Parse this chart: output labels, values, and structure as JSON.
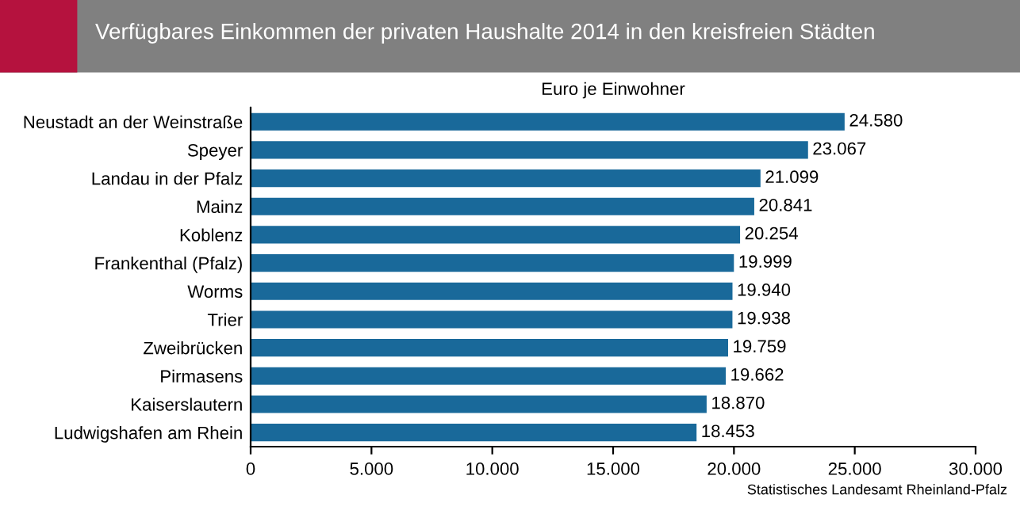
{
  "chart_data": {
    "type": "bar",
    "orientation": "horizontal",
    "title": "Verfügbares Einkommen der privaten Haushalte 2014 in den kreisfreien Städten",
    "subtitle": "Euro je Einwohner",
    "categories": [
      "Neustadt an der Weinstraße",
      "Speyer",
      "Landau in der Pfalz",
      "Mainz",
      "Koblenz",
      "Frankenthal (Pfalz)",
      "Worms",
      "Trier",
      "Zweibrücken",
      "Pirmasens",
      "Kaiserslautern",
      "Ludwigshafen am Rhein"
    ],
    "values": [
      24580,
      23067,
      21099,
      20841,
      20254,
      19999,
      19940,
      19938,
      19759,
      19662,
      18870,
      18453
    ],
    "value_labels": [
      "24.580",
      "23.067",
      "21.099",
      "20.841",
      "20.254",
      "19.999",
      "19.940",
      "19.938",
      "19.759",
      "19.662",
      "18.870",
      "18.453"
    ],
    "color": "#19699a",
    "xlim": [
      0,
      30000
    ],
    "xticks": [
      0,
      {
        "value": 5000,
        "label": "5.000"
      },
      {
        "value": 10000,
        "label": "10.000"
      },
      {
        "value": 15000,
        "label": "15.000"
      },
      {
        "value": 20000,
        "label": "20.000"
      },
      {
        "value": 25000,
        "label": "25.000"
      },
      {
        "value": 30000,
        "label": "30.000"
      }
    ],
    "grid": false,
    "annotations": [
      "Statistisches Landesamt Rheinland-Pfalz"
    ]
  }
}
